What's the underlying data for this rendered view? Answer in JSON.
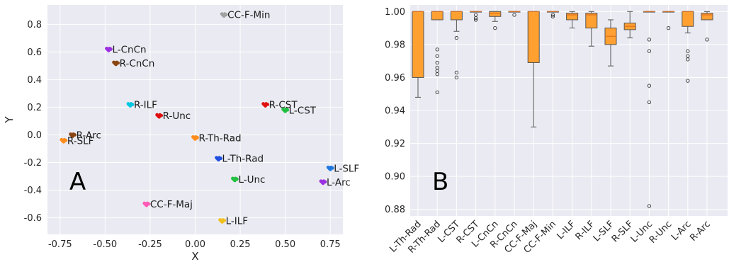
{
  "chart_data": [
    {
      "type": "scatter",
      "panel_label": "A",
      "xlabel": "X",
      "ylabel": "Y",
      "xlim": [
        -0.82,
        0.82
      ],
      "ylim": [
        -0.72,
        0.94
      ],
      "xticks": [
        "-0.75",
        "-0.50",
        "-0.25",
        "0.00",
        "0.25",
        "0.50",
        "0.75"
      ],
      "xtick_values": [
        -0.75,
        -0.5,
        -0.25,
        0.0,
        0.25,
        0.5,
        0.75
      ],
      "yticks": [
        "-0.6",
        "-0.4",
        "-0.2",
        "0.0",
        "0.2",
        "0.4",
        "0.6",
        "0.8"
      ],
      "ytick_values": [
        -0.6,
        -0.4,
        -0.2,
        0.0,
        0.2,
        0.4,
        0.6,
        0.8
      ],
      "grid": true,
      "points": [
        {
          "label": "CC-F-Min",
          "x": 0.16,
          "y": 0.87,
          "color": "#a0a0a0"
        },
        {
          "label": "L-CnCn",
          "x": -0.48,
          "y": 0.62,
          "color": "#9b30e0"
        },
        {
          "label": "R-CnCn",
          "x": -0.44,
          "y": 0.52,
          "color": "#8b4513"
        },
        {
          "label": "R-ILF",
          "x": -0.36,
          "y": 0.22,
          "color": "#00c8e0"
        },
        {
          "label": "R-Unc",
          "x": -0.2,
          "y": 0.14,
          "color": "#e01010"
        },
        {
          "label": "R-CST",
          "x": 0.39,
          "y": 0.22,
          "color": "#e01010"
        },
        {
          "label": "L-CST",
          "x": 0.5,
          "y": 0.18,
          "color": "#22c040"
        },
        {
          "label": "R-Arc",
          "x": -0.68,
          "y": 0.0,
          "color": "#8b4513"
        },
        {
          "label": "R-SLF",
          "x": -0.73,
          "y": -0.04,
          "color": "#ff8c1a"
        },
        {
          "label": "R-Th-Rad",
          "x": 0.0,
          "y": -0.02,
          "color": "#ff8c1a"
        },
        {
          "label": "L-Th-Rad",
          "x": 0.13,
          "y": -0.17,
          "color": "#1f4fe0"
        },
        {
          "label": "L-SLF",
          "x": 0.75,
          "y": -0.24,
          "color": "#1f78e0"
        },
        {
          "label": "L-Unc",
          "x": 0.22,
          "y": -0.32,
          "color": "#22c040"
        },
        {
          "label": "L-Arc",
          "x": 0.71,
          "y": -0.34,
          "color": "#9b30e0"
        },
        {
          "label": "CC-F-Maj",
          "x": -0.27,
          "y": -0.5,
          "color": "#ff5ab4"
        },
        {
          "label": "L-ILF",
          "x": 0.15,
          "y": -0.62,
          "color": "#f0c020"
        }
      ]
    },
    {
      "type": "box",
      "panel_label": "B",
      "ylim": [
        0.876,
        1.004
      ],
      "yticks": [
        "0.88",
        "0.90",
        "0.92",
        "0.94",
        "0.96",
        "0.98",
        "1.00"
      ],
      "ytick_values": [
        0.88,
        0.9,
        0.92,
        0.94,
        0.96,
        0.98,
        1.0
      ],
      "grid": true,
      "box_color": "#ffa030",
      "median_color": "#e07020",
      "categories": [
        "L-Th-Rad",
        "R-Th-Rad",
        "L-CST",
        "R-CST",
        "L-CnCn",
        "R-CnCn",
        "CC-F-Maj",
        "CC-F-Min",
        "L-ILF",
        "R-ILF",
        "L-SLF",
        "R-SLF",
        "L-Unc",
        "R-Unc",
        "L-Arc",
        "R-Arc"
      ],
      "boxes": [
        {
          "whislo": 0.948,
          "q1": 0.96,
          "med": 1.0,
          "q3": 1.0,
          "whishi": 1.0,
          "fliers": []
        },
        {
          "whislo": 0.995,
          "q1": 0.995,
          "med": 1.0,
          "q3": 1.0,
          "whishi": 1.0,
          "fliers": [
            0.977,
            0.973,
            0.969,
            0.966,
            0.964,
            0.962,
            0.951
          ]
        },
        {
          "whislo": 0.988,
          "q1": 0.995,
          "med": 1.0,
          "q3": 1.0,
          "whishi": 1.0,
          "fliers": [
            0.984,
            0.963,
            0.96
          ]
        },
        {
          "whislo": 1.0,
          "q1": 1.0,
          "med": 1.0,
          "q3": 1.0,
          "whishi": 1.0,
          "fliers": [
            0.998,
            0.996,
            0.995
          ]
        },
        {
          "whislo": 0.994,
          "q1": 0.997,
          "med": 0.999,
          "q3": 1.0,
          "whishi": 1.0,
          "fliers": [
            0.99
          ]
        },
        {
          "whislo": 1.0,
          "q1": 1.0,
          "med": 1.0,
          "q3": 1.0,
          "whishi": 1.0,
          "fliers": [
            0.998
          ]
        },
        {
          "whislo": 0.93,
          "q1": 0.969,
          "med": 1.0,
          "q3": 1.0,
          "whishi": 1.0,
          "fliers": []
        },
        {
          "whislo": 1.0,
          "q1": 1.0,
          "med": 1.0,
          "q3": 1.0,
          "whishi": 1.0,
          "fliers": [
            0.998,
            0.997
          ]
        },
        {
          "whislo": 0.99,
          "q1": 0.995,
          "med": 0.998,
          "q3": 0.999,
          "whishi": 1.0,
          "fliers": []
        },
        {
          "whislo": 0.979,
          "q1": 0.99,
          "med": 0.998,
          "q3": 0.999,
          "whishi": 1.0,
          "fliers": []
        },
        {
          "whislo": 0.967,
          "q1": 0.98,
          "med": 0.985,
          "q3": 0.99,
          "whishi": 0.995,
          "fliers": []
        },
        {
          "whislo": 0.984,
          "q1": 0.989,
          "med": 0.991,
          "q3": 0.993,
          "whishi": 1.0,
          "fliers": []
        },
        {
          "whislo": 1.0,
          "q1": 1.0,
          "med": 1.0,
          "q3": 1.0,
          "whishi": 1.0,
          "fliers": [
            0.983,
            0.976,
            0.955,
            0.945,
            0.882
          ]
        },
        {
          "whislo": 1.0,
          "q1": 1.0,
          "med": 1.0,
          "q3": 1.0,
          "whishi": 1.0,
          "fliers": [
            0.99
          ]
        },
        {
          "whislo": 0.987,
          "q1": 0.991,
          "med": 1.0,
          "q3": 1.0,
          "whishi": 1.0,
          "fliers": [
            0.976,
            0.973,
            0.971,
            0.958
          ]
        },
        {
          "whislo": 0.995,
          "q1": 0.995,
          "med": 0.998,
          "q3": 0.999,
          "whishi": 1.0,
          "fliers": [
            0.983
          ]
        }
      ]
    }
  ]
}
